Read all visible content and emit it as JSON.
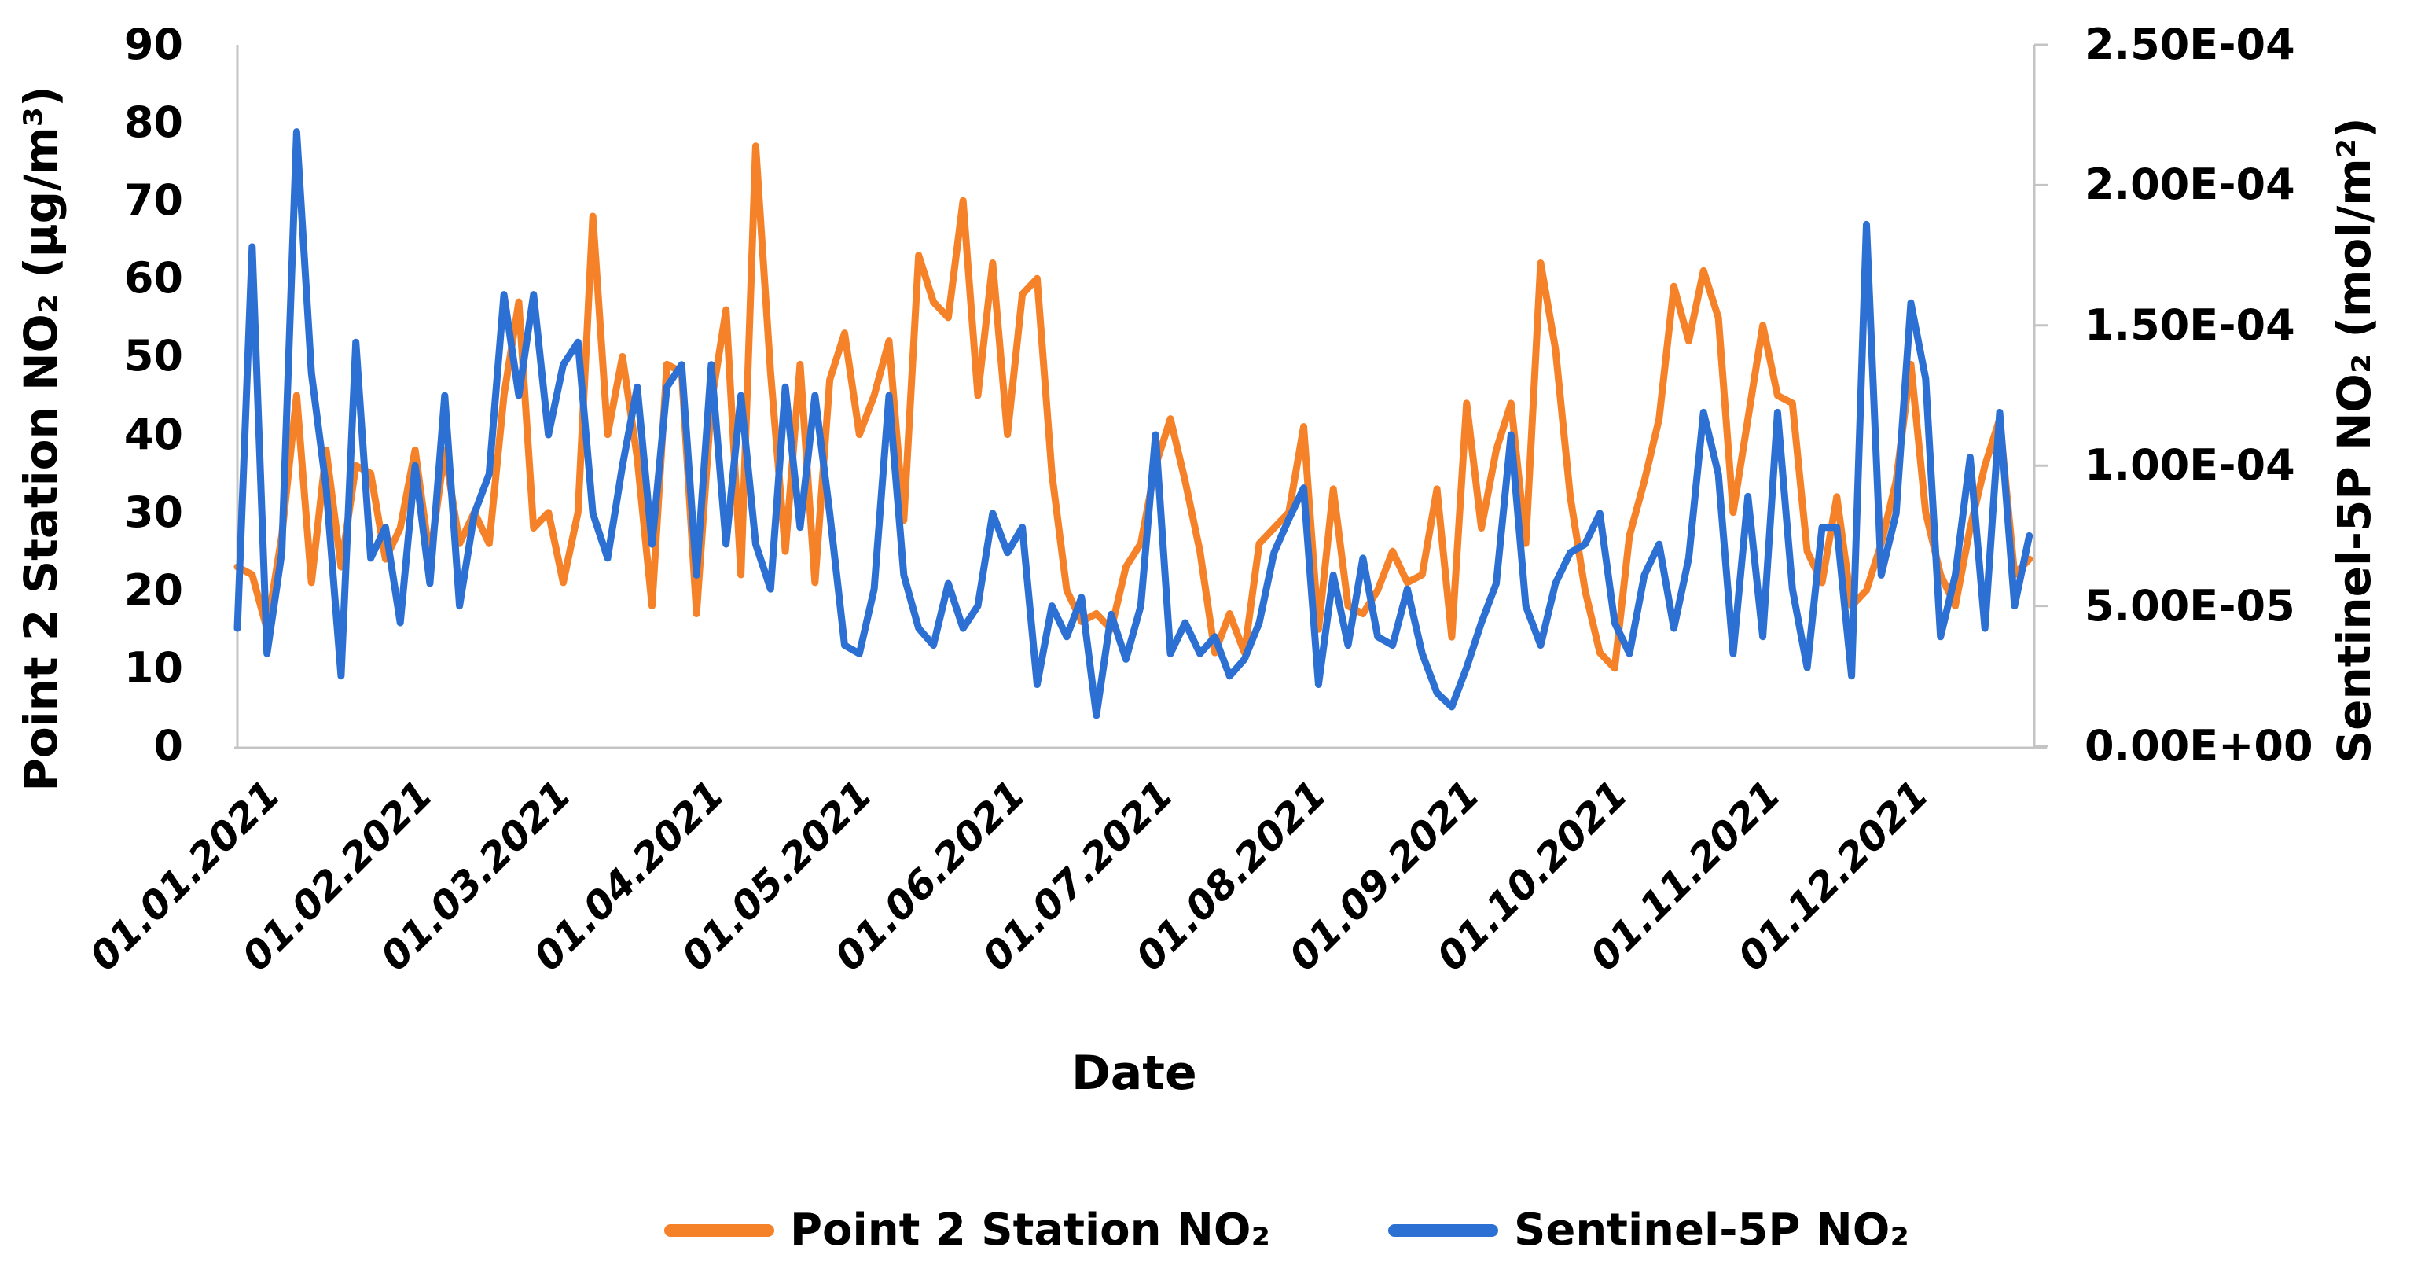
{
  "chart_data": {
    "type": "line",
    "title": "",
    "grid": false,
    "legend_position": "bottom-center",
    "x_axis": {
      "title": "Date",
      "tick_labels": [
        "01.01.2021",
        "01.02.2021",
        "01.03.2021",
        "01.04.2021",
        "01.05.2021",
        "01.06.2021",
        "01.07.2021",
        "01.08.2021",
        "01.09.2021",
        "01.10.2021",
        "01.11.2021",
        "01.12.2021"
      ],
      "tick_day_index": [
        0,
        31,
        59,
        90,
        120,
        151,
        181,
        212,
        243,
        273,
        304,
        334
      ],
      "total_days": 364,
      "sample_day_step": 3,
      "start_date": "01.01.2021"
    },
    "left_axis": {
      "title": "Point 2 Station NO₂ (µg/m³)",
      "min": 0,
      "max": 90,
      "tick_labels": [
        "0",
        "10",
        "20",
        "30",
        "40",
        "50",
        "60",
        "70",
        "80",
        "90"
      ],
      "tick_values": [
        0,
        10,
        20,
        30,
        40,
        50,
        60,
        70,
        80,
        90
      ]
    },
    "right_axis": {
      "title": "Sentinel-5P NO₂ (mol/m²)",
      "min": 0,
      "max": 0.00025,
      "tick_labels": [
        "0.00E+00",
        "5.00E-05",
        "1.00E-04",
        "1.50E-04",
        "2.00E-04",
        "2.50E-04"
      ],
      "tick_values": [
        0,
        5e-05,
        0.0001,
        0.00015,
        0.0002,
        0.00025
      ]
    },
    "series": [
      {
        "name": "Point 2 Station NO₂",
        "axis": "left",
        "unit": "µg/m³",
        "color": "#F58229",
        "values": [
          23,
          22,
          15,
          27,
          45,
          21,
          38,
          23,
          36,
          35,
          24,
          28,
          38,
          24,
          38,
          26,
          30,
          26,
          45,
          57,
          28,
          30,
          21,
          30,
          68,
          40,
          50,
          37,
          18,
          49,
          48,
          17,
          44,
          56,
          22,
          77,
          48,
          25,
          49,
          21,
          47,
          53,
          40,
          45,
          52,
          29,
          63,
          57,
          55,
          70,
          45,
          62,
          40,
          58,
          60,
          35,
          20,
          16,
          17,
          15,
          23,
          26,
          36,
          42,
          34,
          25,
          12,
          17,
          12,
          26,
          28,
          30,
          41,
          15,
          33,
          18,
          17,
          20,
          25,
          21,
          22,
          33,
          14,
          44,
          28,
          38,
          44,
          26,
          62,
          51,
          32,
          20,
          12,
          10,
          27,
          34,
          42,
          59,
          52,
          61,
          55,
          30,
          42,
          54,
          45,
          44,
          25,
          21,
          32,
          18,
          20,
          26,
          34,
          49,
          30,
          22,
          18,
          28,
          36,
          42,
          22,
          24
        ]
      },
      {
        "name": "Sentinel-5P NO₂",
        "axis": "right",
        "unit": "mol/m²",
        "color": "#2D70D3",
        "values": [
          4.2e-05,
          0.000178,
          3.3e-05,
          6.9e-05,
          0.000219,
          0.000133,
          9.2e-05,
          2.5e-05,
          0.000144,
          6.7e-05,
          7.8e-05,
          4.4e-05,
          0.0001,
          5.8e-05,
          0.000125,
          5e-05,
          8.3e-05,
          9.7e-05,
          0.000161,
          0.000125,
          0.000161,
          0.000111,
          0.000136,
          0.000144,
          8.3e-05,
          6.7e-05,
          0.0001,
          0.000128,
          7.2e-05,
          0.000128,
          0.000136,
          6.1e-05,
          0.000136,
          7.2e-05,
          0.000125,
          7.2e-05,
          5.6e-05,
          0.000128,
          7.8e-05,
          0.000125,
          8.3e-05,
          3.6e-05,
          3.3e-05,
          5.6e-05,
          0.000125,
          6.1e-05,
          4.2e-05,
          3.6e-05,
          5.8e-05,
          4.2e-05,
          5e-05,
          8.3e-05,
          6.9e-05,
          7.8e-05,
          2.2e-05,
          5e-05,
          3.9e-05,
          5.3e-05,
          1.1e-05,
          4.7e-05,
          3.1e-05,
          5e-05,
          0.000111,
          3.3e-05,
          4.4e-05,
          3.3e-05,
          3.9e-05,
          2.5e-05,
          3.1e-05,
          4.4e-05,
          6.9e-05,
          8.1e-05,
          9.2e-05,
          2.2e-05,
          6.1e-05,
          3.6e-05,
          6.7e-05,
          3.9e-05,
          3.6e-05,
          5.6e-05,
          3.3e-05,
          1.9e-05,
          1.4e-05,
          2.8e-05,
          4.4e-05,
          5.8e-05,
          0.000111,
          5e-05,
          3.6e-05,
          5.8e-05,
          6.9e-05,
          7.2e-05,
          8.3e-05,
          4.4e-05,
          3.3e-05,
          6.1e-05,
          7.2e-05,
          4.2e-05,
          6.7e-05,
          0.000119,
          9.7e-05,
          3.3e-05,
          8.9e-05,
          3.9e-05,
          0.000119,
          5.6e-05,
          2.8e-05,
          7.8e-05,
          7.8e-05,
          2.5e-05,
          0.000186,
          6.1e-05,
          8.3e-05,
          0.000158,
          0.000131,
          3.9e-05,
          6.1e-05,
          0.000103,
          4.2e-05,
          0.000119,
          5e-05,
          7.5e-05
        ]
      }
    ],
    "legend": [
      {
        "label": "Point 2 Station NO₂",
        "color": "#F58229"
      },
      {
        "label": "Sentinel-5P NO₂",
        "color": "#2D70D3"
      }
    ]
  },
  "styles": {
    "axis_line_color": "#C4C4C4",
    "text_color": "#000000",
    "background": "#FFFFFF"
  }
}
